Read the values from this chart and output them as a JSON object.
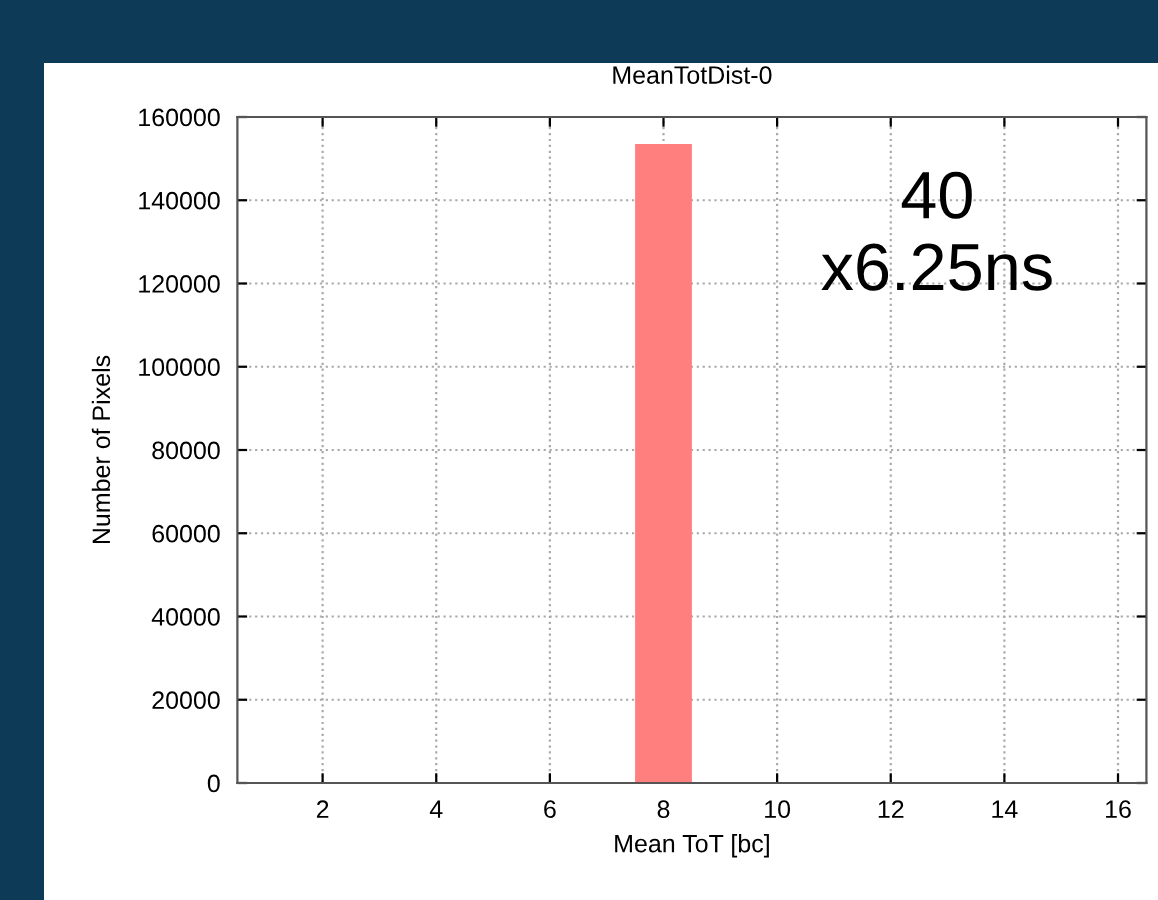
{
  "chart_data": {
    "type": "histogram",
    "title": "MeanTotDist-0",
    "xlabel": "Mean ToT [bc]",
    "ylabel": "Number of Pixels",
    "bins": [
      0.5,
      1.5,
      2.5,
      3.5,
      4.5,
      5.5,
      6.5,
      7.5,
      8.5,
      9.5,
      10.5,
      11.5,
      12.5,
      13.5,
      14.5,
      15.5,
      16.5
    ],
    "values": [
      0,
      0,
      0,
      0,
      0,
      0,
      0,
      153500,
      0,
      0,
      0,
      0,
      0,
      0,
      0,
      0
    ],
    "color": "#ff7f7f",
    "xlim": [
      0.5,
      16.5
    ],
    "xticks": [
      2,
      4,
      6,
      8,
      10,
      12,
      14,
      16
    ],
    "ylim": [
      0,
      160000
    ],
    "yticks": [
      0,
      20000,
      40000,
      60000,
      80000,
      100000,
      120000,
      140000,
      160000
    ],
    "grid": true,
    "annotations": [
      "40\nx6.25ns"
    ]
  }
}
